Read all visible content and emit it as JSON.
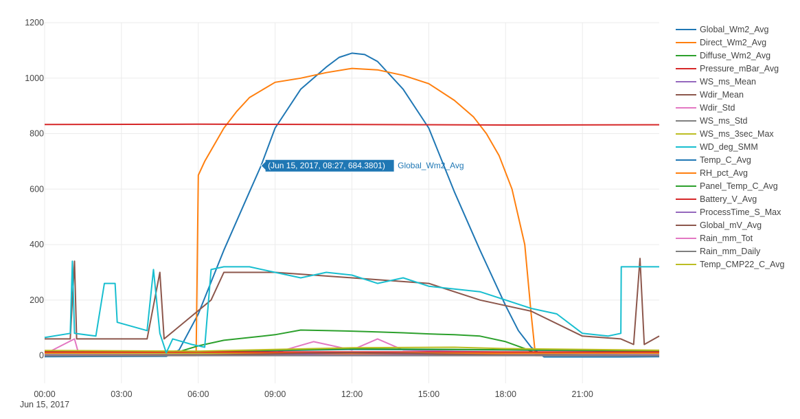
{
  "chart_data": {
    "type": "line",
    "x_unit": "hours",
    "xlim": [
      "00:00",
      "24:00"
    ],
    "ylim": [
      -100,
      1200
    ],
    "x_ticks": [
      "00:00",
      "03:00",
      "06:00",
      "09:00",
      "12:00",
      "15:00",
      "18:00",
      "21:00"
    ],
    "x_date_label": "Jun 15, 2017",
    "y_ticks": [
      0,
      200,
      400,
      600,
      800,
      1000,
      1200
    ],
    "grid": true,
    "legend_position": "right",
    "hover": {
      "label": "(Jun 15, 2017, 08:27, 684.3801)",
      "series": "Global_Wm2_Avg",
      "x": "08:27",
      "y": 684.38,
      "color": "#1f77b4"
    },
    "series": [
      {
        "name": "Global_Wm2_Avg",
        "color": "#1f77b4",
        "points": [
          [
            "00:00",
            -4
          ],
          [
            "04:45",
            -3
          ],
          [
            "05:15",
            20
          ],
          [
            "06:00",
            150
          ],
          [
            "07:00",
            380
          ],
          [
            "08:00",
            590
          ],
          [
            "08:27",
            684
          ],
          [
            "09:00",
            820
          ],
          [
            "10:00",
            960
          ],
          [
            "11:00",
            1040
          ],
          [
            "11:30",
            1075
          ],
          [
            "12:00",
            1090
          ],
          [
            "12:30",
            1085
          ],
          [
            "13:00",
            1060
          ],
          [
            "14:00",
            960
          ],
          [
            "15:00",
            820
          ],
          [
            "16:00",
            590
          ],
          [
            "17:00",
            380
          ],
          [
            "18:00",
            180
          ],
          [
            "18:30",
            90
          ],
          [
            "19:00",
            30
          ],
          [
            "19:30",
            -5
          ],
          [
            "22:30",
            -5
          ],
          [
            "24:00",
            -4
          ]
        ]
      },
      {
        "name": "Direct_Wm2_Avg",
        "color": "#ff7f0e",
        "points": [
          [
            "00:00",
            0
          ],
          [
            "05:55",
            0
          ],
          [
            "06:00",
            650
          ],
          [
            "06:15",
            700
          ],
          [
            "06:30",
            740
          ],
          [
            "07:00",
            820
          ],
          [
            "07:30",
            880
          ],
          [
            "08:00",
            930
          ],
          [
            "09:00",
            985
          ],
          [
            "10:00",
            1000
          ],
          [
            "11:00",
            1020
          ],
          [
            "12:00",
            1035
          ],
          [
            "13:00",
            1030
          ],
          [
            "14:00",
            1010
          ],
          [
            "15:00",
            980
          ],
          [
            "16:00",
            920
          ],
          [
            "16:45",
            860
          ],
          [
            "17:15",
            800
          ],
          [
            "17:45",
            720
          ],
          [
            "18:15",
            600
          ],
          [
            "18:45",
            400
          ],
          [
            "19:00",
            150
          ],
          [
            "19:10",
            0
          ],
          [
            "24:00",
            0
          ]
        ]
      },
      {
        "name": "Diffuse_Wm2_Avg",
        "color": "#2ca02c",
        "points": [
          [
            "00:00",
            0
          ],
          [
            "04:45",
            0
          ],
          [
            "06:00",
            35
          ],
          [
            "07:00",
            55
          ],
          [
            "08:00",
            65
          ],
          [
            "09:00",
            75
          ],
          [
            "10:00",
            92
          ],
          [
            "11:00",
            90
          ],
          [
            "12:00",
            88
          ],
          [
            "13:00",
            85
          ],
          [
            "14:00",
            82
          ],
          [
            "15:00",
            78
          ],
          [
            "16:00",
            75
          ],
          [
            "17:00",
            70
          ],
          [
            "18:00",
            50
          ],
          [
            "18:45",
            25
          ],
          [
            "19:15",
            5
          ],
          [
            "24:00",
            0
          ]
        ]
      },
      {
        "name": "Pressure_mBar_Avg",
        "color": "#d62728",
        "points": [
          [
            "00:00",
            833
          ],
          [
            "06:00",
            834
          ],
          [
            "12:00",
            833
          ],
          [
            "18:00",
            831
          ],
          [
            "24:00",
            832
          ]
        ]
      },
      {
        "name": "WS_ms_Mean",
        "color": "#9467bd",
        "points": [
          [
            "00:00",
            3
          ],
          [
            "24:00",
            3
          ]
        ]
      },
      {
        "name": "Wdir_Mean",
        "color": "#8c564b",
        "points": [
          [
            "00:00",
            60
          ],
          [
            "01:00",
            60
          ],
          [
            "01:10",
            340
          ],
          [
            "01:15",
            60
          ],
          [
            "04:00",
            60
          ],
          [
            "04:30",
            300
          ],
          [
            "04:40",
            60
          ],
          [
            "06:30",
            200
          ],
          [
            "07:00",
            300
          ],
          [
            "09:00",
            300
          ],
          [
            "12:00",
            280
          ],
          [
            "15:00",
            260
          ],
          [
            "17:00",
            200
          ],
          [
            "19:00",
            160
          ],
          [
            "21:00",
            70
          ],
          [
            "22:30",
            60
          ],
          [
            "23:00",
            40
          ],
          [
            "23:15",
            350
          ],
          [
            "23:25",
            40
          ],
          [
            "24:00",
            70
          ]
        ]
      },
      {
        "name": "Wdir_Std",
        "color": "#e377c2",
        "points": [
          [
            "00:00",
            5
          ],
          [
            "01:10",
            60
          ],
          [
            "01:20",
            5
          ],
          [
            "09:00",
            10
          ],
          [
            "10:30",
            50
          ],
          [
            "12:00",
            20
          ],
          [
            "13:00",
            60
          ],
          [
            "14:00",
            20
          ],
          [
            "16:00",
            15
          ],
          [
            "24:00",
            5
          ]
        ]
      },
      {
        "name": "WS_ms_Std",
        "color": "#7f7f7f",
        "points": [
          [
            "00:00",
            1
          ],
          [
            "24:00",
            1
          ]
        ]
      },
      {
        "name": "WS_ms_3sec_Max",
        "color": "#bcbd22",
        "points": [
          [
            "00:00",
            8
          ],
          [
            "24:00",
            8
          ]
        ]
      },
      {
        "name": "WD_deg_SMM",
        "color": "#17becf",
        "points": [
          [
            "00:00",
            65
          ],
          [
            "01:00",
            80
          ],
          [
            "01:05",
            340
          ],
          [
            "01:10",
            80
          ],
          [
            "02:00",
            70
          ],
          [
            "02:20",
            260
          ],
          [
            "02:45",
            260
          ],
          [
            "02:50",
            120
          ],
          [
            "04:00",
            90
          ],
          [
            "04:15",
            310
          ],
          [
            "04:30",
            80
          ],
          [
            "04:45",
            10
          ],
          [
            "05:00",
            60
          ],
          [
            "05:45",
            40
          ],
          [
            "06:15",
            30
          ],
          [
            "06:30",
            310
          ],
          [
            "07:00",
            320
          ],
          [
            "08:00",
            320
          ],
          [
            "09:00",
            300
          ],
          [
            "10:00",
            280
          ],
          [
            "11:00",
            300
          ],
          [
            "12:00",
            290
          ],
          [
            "13:00",
            260
          ],
          [
            "14:00",
            280
          ],
          [
            "15:00",
            250
          ],
          [
            "16:00",
            240
          ],
          [
            "17:00",
            230
          ],
          [
            "18:00",
            200
          ],
          [
            "19:00",
            170
          ],
          [
            "20:00",
            150
          ],
          [
            "21:00",
            80
          ],
          [
            "22:00",
            70
          ],
          [
            "22:30",
            80
          ],
          [
            "22:31",
            320
          ],
          [
            "24:00",
            320
          ]
        ]
      },
      {
        "name": "Temp_C_Avg",
        "color": "#1f77b4",
        "points": [
          [
            "00:00",
            15
          ],
          [
            "06:00",
            14
          ],
          [
            "12:00",
            22
          ],
          [
            "18:00",
            20
          ],
          [
            "24:00",
            16
          ]
        ]
      },
      {
        "name": "RH_pct_Avg",
        "color": "#ff7f0e",
        "points": [
          [
            "00:00",
            10
          ],
          [
            "06:00",
            12
          ],
          [
            "12:00",
            6
          ],
          [
            "18:00",
            8
          ],
          [
            "24:00",
            10
          ]
        ]
      },
      {
        "name": "Panel_Temp_C_Avg",
        "color": "#2ca02c",
        "points": [
          [
            "00:00",
            16
          ],
          [
            "06:00",
            15
          ],
          [
            "12:00",
            24
          ],
          [
            "18:00",
            21
          ],
          [
            "24:00",
            17
          ]
        ]
      },
      {
        "name": "Battery_V_Avg",
        "color": "#d62728",
        "points": [
          [
            "00:00",
            13
          ],
          [
            "24:00",
            13
          ]
        ]
      },
      {
        "name": "ProcessTime_S_Max",
        "color": "#9467bd",
        "points": [
          [
            "00:00",
            2
          ],
          [
            "24:00",
            2
          ]
        ]
      },
      {
        "name": "Global_mV_Avg",
        "color": "#8c564b",
        "points": [
          [
            "00:00",
            0
          ],
          [
            "06:00",
            2
          ],
          [
            "12:00",
            10
          ],
          [
            "18:00",
            2
          ],
          [
            "24:00",
            0
          ]
        ]
      },
      {
        "name": "Rain_mm_Tot",
        "color": "#e377c2",
        "points": [
          [
            "00:00",
            0
          ],
          [
            "24:00",
            0
          ]
        ]
      },
      {
        "name": "Rain_mm_Daily",
        "color": "#7f7f7f",
        "points": [
          [
            "00:00",
            0
          ],
          [
            "24:00",
            0
          ]
        ]
      },
      {
        "name": "Temp_CMP22_C_Avg",
        "color": "#bcbd22",
        "points": [
          [
            "00:00",
            18
          ],
          [
            "06:00",
            16
          ],
          [
            "12:00",
            28
          ],
          [
            "16:00",
            30
          ],
          [
            "18:00",
            25
          ],
          [
            "24:00",
            19
          ]
        ]
      }
    ]
  }
}
